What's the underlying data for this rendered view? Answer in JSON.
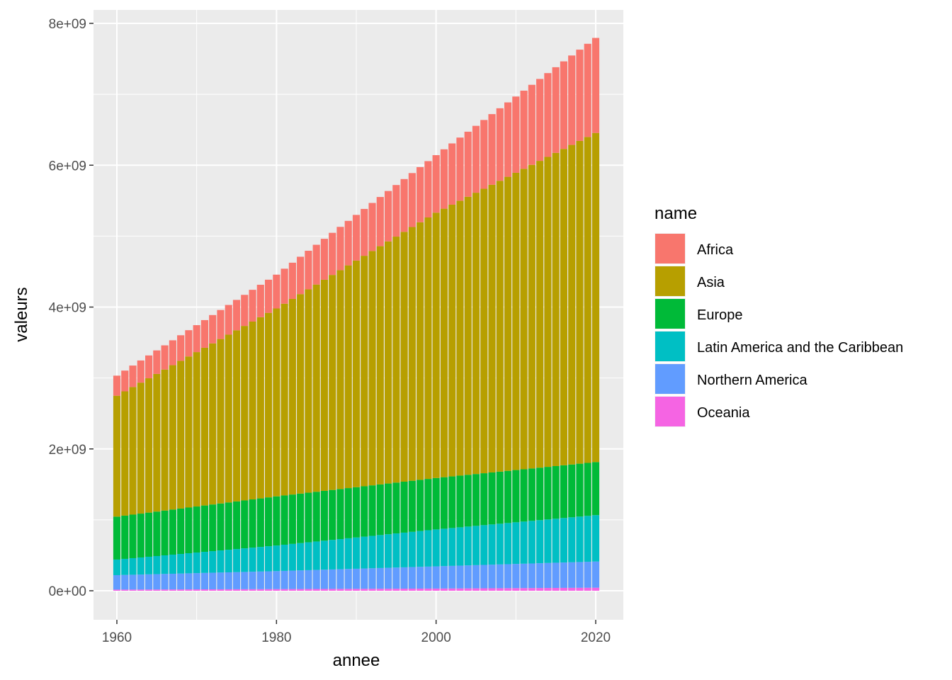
{
  "chart_data": {
    "type": "bar",
    "stacked": true,
    "xlabel": "annee",
    "ylabel": "valeurs",
    "x_ticks": [
      "1960",
      "1980",
      "2000",
      "2020"
    ],
    "y_ticks": [
      "0e+00",
      "2e+09",
      "4e+09",
      "6e+09",
      "8e+09"
    ],
    "xlim": [
      1959,
      2021
    ],
    "ylim": [
      0,
      8000000000
    ],
    "grid": true,
    "legend": {
      "title": "name",
      "placement": "right"
    },
    "years": [
      1960,
      1961,
      1962,
      1963,
      1964,
      1965,
      1966,
      1967,
      1968,
      1969,
      1970,
      1971,
      1972,
      1973,
      1974,
      1975,
      1976,
      1977,
      1978,
      1979,
      1980,
      1981,
      1982,
      1983,
      1984,
      1985,
      1986,
      1987,
      1988,
      1989,
      1990,
      1991,
      1992,
      1993,
      1994,
      1995,
      1996,
      1997,
      1998,
      1999,
      2000,
      2001,
      2002,
      2003,
      2004,
      2005,
      2006,
      2007,
      2008,
      2009,
      2010,
      2011,
      2012,
      2013,
      2014,
      2015,
      2016,
      2017,
      2018,
      2019,
      2020
    ],
    "series_order_bottom_to_top": [
      "Oceania",
      "Northern America",
      "Latin America and the Caribbean",
      "Europe",
      "Asia",
      "Africa"
    ],
    "series_anchor_values": [
      {
        "name": "Africa",
        "color": "#F8766D",
        "year_1960": 283000000,
        "year_1980": 477000000,
        "year_2000": 811000000,
        "year_2020": 1340000000
      },
      {
        "name": "Asia",
        "color": "#B79F00",
        "year_1960": 1705000000,
        "year_1980": 2649000000,
        "year_2000": 3741000000,
        "year_2020": 4641000000
      },
      {
        "name": "Europe",
        "color": "#00BA38",
        "year_1960": 605000000,
        "year_1980": 693000000,
        "year_2000": 725000000,
        "year_2020": 748000000
      },
      {
        "name": "Latin America and the Caribbean",
        "color": "#00BFC4",
        "year_1960": 220000000,
        "year_1980": 361000000,
        "year_2000": 521000000,
        "year_2020": 654000000
      },
      {
        "name": "Northern America",
        "color": "#619CFF",
        "year_1960": 204000000,
        "year_1980": 254000000,
        "year_2000": 313000000,
        "year_2020": 369000000
      },
      {
        "name": "Oceania",
        "color": "#F564E3",
        "year_1960": 16000000,
        "year_1980": 23000000,
        "year_2000": 31000000,
        "year_2020": 43000000
      }
    ]
  }
}
